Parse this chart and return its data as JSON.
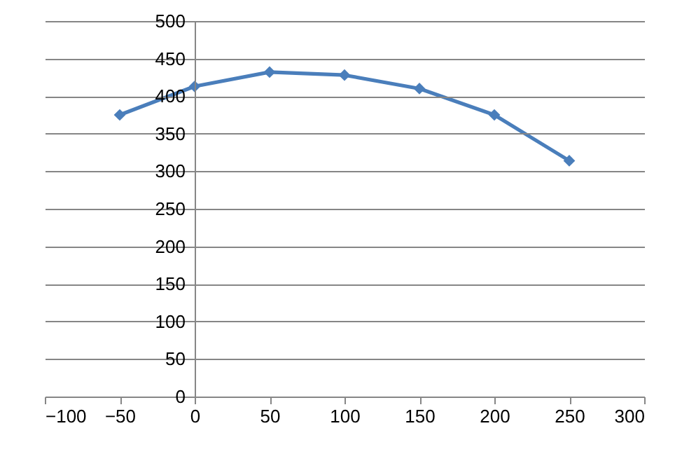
{
  "chart_data": {
    "type": "line",
    "x": [
      -50,
      0,
      50,
      100,
      150,
      200,
      250
    ],
    "series": [
      {
        "color": "#4a7ebb",
        "values": [
          375,
          413,
          432,
          428,
          410,
          375,
          314
        ]
      }
    ],
    "xlim": [
      -100,
      300
    ],
    "xticks": [
      -100,
      -50,
      0,
      50,
      100,
      150,
      200,
      250,
      300
    ],
    "ylim": [
      0,
      500
    ],
    "yticks": [
      0,
      50,
      100,
      150,
      200,
      250,
      300,
      350,
      400,
      450,
      500
    ],
    "grid": "y",
    "marker": "diamond",
    "line_style": "solid"
  }
}
